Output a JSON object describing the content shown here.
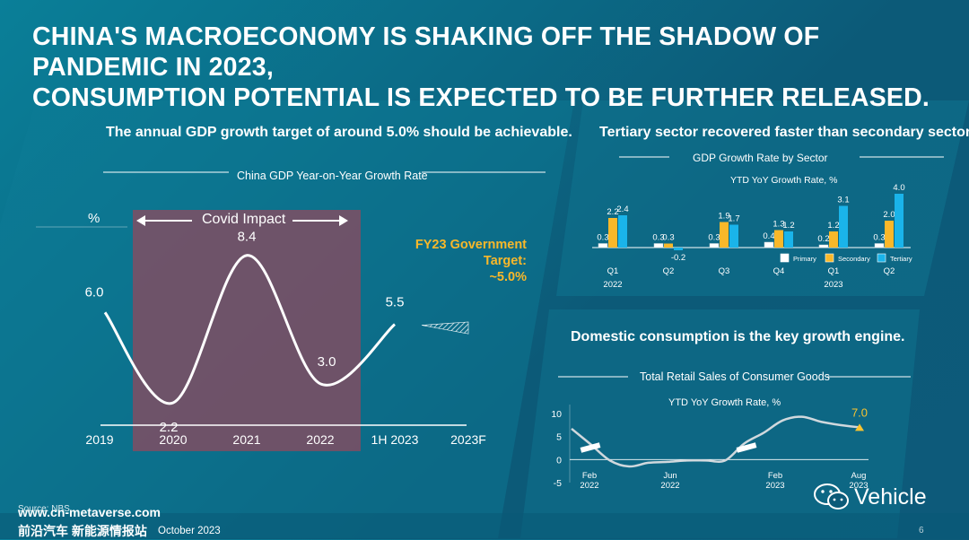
{
  "page": {
    "title": "CHINA'S MACROECONOMY IS SHAKING OFF THE SHADOW OF PANDEMIC IN 2023,\nCONSUMPTION POTENTIAL IS EXPECTED TO BE FURTHER RELEASED.",
    "footer_site": "www.cn-metaverse.com",
    "footer_cn": "前沿汽车 新能源情报站",
    "footer_source": "Source: NBS",
    "footer_date": "October 2023",
    "page_number": "6",
    "logo_text": "Vehicle",
    "colors": {
      "primary": "#ffffff",
      "secondary": "#f9b82a",
      "tertiary": "#1ab4ea",
      "highlight": "#8a4a5f",
      "accent": "#f9c430"
    }
  },
  "chart_data": [
    {
      "type": "line",
      "section_title": "The annual GDP growth target of around 5.0% should be achievable.",
      "title": "China GDP Year-on-Year Growth Rate",
      "ylabel": "%",
      "categories": [
        "2019",
        "2020",
        "2021",
        "2022",
        "1H 2023",
        "2023F"
      ],
      "values": [
        6.0,
        2.2,
        8.4,
        3.0,
        5.5,
        null
      ],
      "labels": [
        "6.0",
        "2.2",
        "8.4",
        "3.0",
        "5.5"
      ],
      "forecast_band": [
        4.9,
        5.2
      ],
      "shaded_region": {
        "from": "2020",
        "to": "2022",
        "label": "Covid Impact"
      },
      "annotation": "FY23 Government Target:\n~5.0%"
    },
    {
      "type": "bar",
      "section_title": "Tertiary sector recovered faster than secondary sector.",
      "title": "GDP Growth Rate by Sector",
      "subtitle": "YTD YoY Growth Rate, %",
      "categories": [
        "Q1",
        "Q2",
        "Q3",
        "Q4",
        "Q1",
        "Q2"
      ],
      "year_labels": [
        "2022",
        "2023"
      ],
      "series": [
        {
          "name": "Primary",
          "values": [
            0.3,
            0.3,
            0.3,
            0.4,
            0.2,
            0.3
          ],
          "labels": [
            "0.3",
            "0.3",
            "0.3",
            "0.4",
            "0.2",
            "0.3"
          ]
        },
        {
          "name": "Secondary",
          "values": [
            2.2,
            0.3,
            1.9,
            1.3,
            1.2,
            2.0
          ],
          "labels": [
            "2.2",
            "0.3",
            "1.9",
            "1.3",
            "1.2",
            "2.0"
          ]
        },
        {
          "name": "Tertiary",
          "values": [
            2.4,
            -0.2,
            1.7,
            1.2,
            3.1,
            4.0
          ],
          "labels": [
            "2.4",
            "-0.2",
            "1.7",
            "1.2",
            "3.1",
            "4.0"
          ]
        }
      ],
      "legend": "bottom-right"
    },
    {
      "type": "line",
      "section_title": "Domestic consumption is the key growth engine.",
      "title": "Total Retail Sales of Consumer Goods",
      "subtitle": "YTD YoY Growth Rate, %",
      "yticks": [
        "10",
        "5",
        "0",
        "-5"
      ],
      "ylim": [
        -5,
        10
      ],
      "xticks": [
        "Feb\n2022",
        "Jun\n2022",
        "Feb\n2023",
        "Aug\n2023"
      ],
      "x": [
        0,
        2,
        4,
        6,
        8,
        10,
        12,
        14,
        16,
        18,
        20,
        22,
        24,
        26,
        28,
        30
      ],
      "values": [
        6.7,
        3.3,
        -0.2,
        -1.5,
        -0.7,
        -0.5,
        -0.2,
        -0.2,
        -0.2,
        3.5,
        5.8,
        8.5,
        9.3,
        8.2,
        7.5,
        7.0
      ],
      "last_label": "7.0"
    }
  ]
}
